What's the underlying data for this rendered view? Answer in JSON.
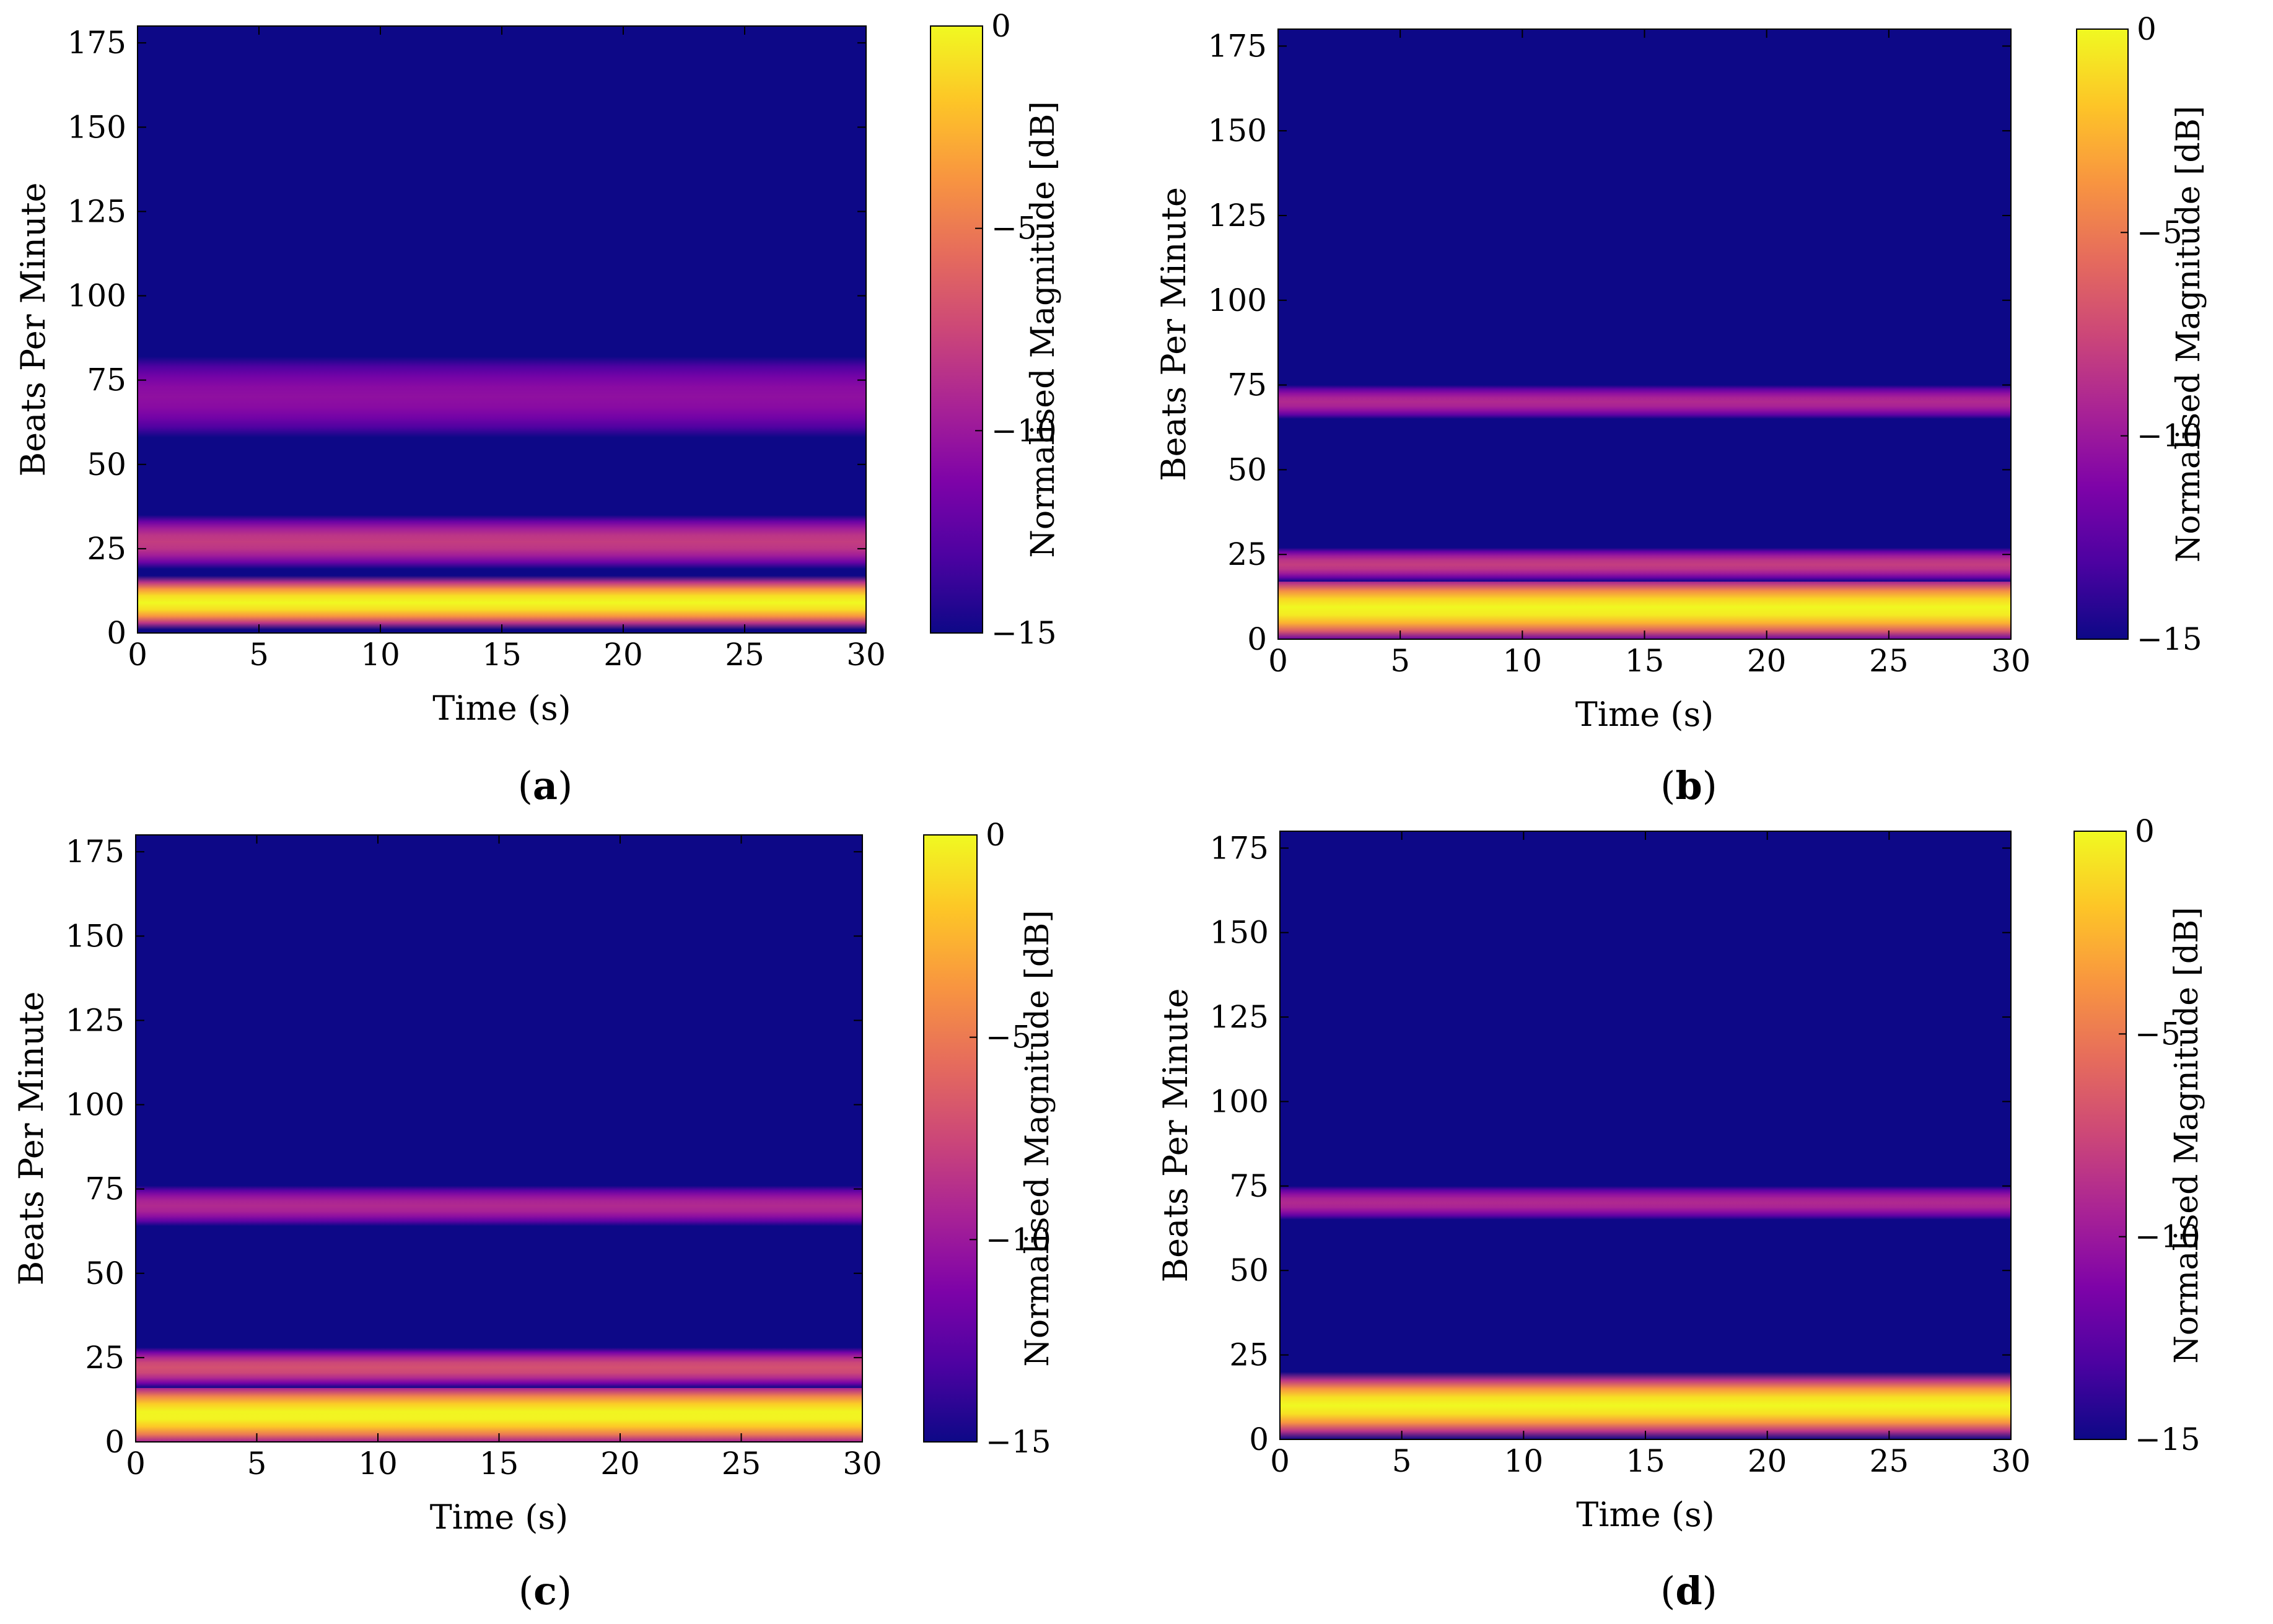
{
  "chart_data": [
    {
      "panel": "a",
      "caption_label": "a",
      "type": "heatmap",
      "xlabel": "Time (s)",
      "ylabel": "Beats Per Minute",
      "xlim": [
        0,
        30
      ],
      "ylim": [
        0,
        180
      ],
      "xticks": [
        0,
        5,
        10,
        15,
        20,
        25,
        30
      ],
      "yticks": [
        0,
        25,
        50,
        75,
        100,
        125,
        150,
        175
      ],
      "colorbar": {
        "label": "Normalised Magnitude [dB]",
        "range": [
          -15,
          0
        ],
        "ticks": [
          0,
          -5,
          -10,
          -15
        ],
        "colormap": "plasma"
      },
      "bands": [
        {
          "bpm_center": 9,
          "half_width": 8,
          "magnitude_db": 0
        },
        {
          "bpm_center": 27,
          "half_width": 8,
          "magnitude_db": -8
        },
        {
          "bpm_center": 70,
          "half_width": 12,
          "magnitude_db": -10.5
        }
      ]
    },
    {
      "panel": "b",
      "caption_label": "b",
      "type": "heatmap",
      "xlabel": "Time (s)",
      "ylabel": "Beats Per Minute",
      "xlim": [
        0,
        30
      ],
      "ylim": [
        0,
        180
      ],
      "xticks": [
        0,
        5,
        10,
        15,
        20,
        25,
        30
      ],
      "yticks": [
        0,
        25,
        50,
        75,
        100,
        125,
        150,
        175
      ],
      "colorbar": {
        "label": "Normalised Magnitude [dB]",
        "range": [
          -15,
          0
        ],
        "ticks": [
          0,
          -5,
          -10,
          -15
        ],
        "colormap": "plasma"
      },
      "bands": [
        {
          "bpm_center": 9,
          "half_width": 10,
          "magnitude_db": 0
        },
        {
          "bpm_center": 22,
          "half_width": 5,
          "magnitude_db": -8
        },
        {
          "bpm_center": 70,
          "half_width": 5,
          "magnitude_db": -9
        }
      ]
    },
    {
      "panel": "c",
      "caption_label": "c",
      "type": "heatmap",
      "xlabel": "Time (s)",
      "ylabel": "Beats Per Minute",
      "xlim": [
        0,
        30
      ],
      "ylim": [
        0,
        180
      ],
      "xticks": [
        0,
        5,
        10,
        15,
        20,
        25,
        30
      ],
      "yticks": [
        0,
        25,
        50,
        75,
        100,
        125,
        150,
        175
      ],
      "colorbar": {
        "label": "Normalised Magnitude [dB]",
        "range": [
          -15,
          0
        ],
        "ticks": [
          0,
          -5,
          -10,
          -15
        ],
        "colormap": "plasma"
      },
      "bands": [
        {
          "bpm_center": 8,
          "half_width": 10,
          "magnitude_db": 0
        },
        {
          "bpm_center": 22,
          "half_width": 6,
          "magnitude_db": -7
        },
        {
          "bpm_center": 70,
          "half_width": 6,
          "magnitude_db": -9
        }
      ]
    },
    {
      "panel": "d",
      "caption_label": "d",
      "type": "heatmap",
      "xlabel": "Time (s)",
      "ylabel": "Beats Per Minute",
      "xlim": [
        0,
        30
      ],
      "ylim": [
        0,
        180
      ],
      "xticks": [
        0,
        5,
        10,
        15,
        20,
        25,
        30
      ],
      "yticks": [
        0,
        25,
        50,
        75,
        100,
        125,
        150,
        175
      ],
      "colorbar": {
        "label": "Normalised Magnitude [dB]",
        "range": [
          -15,
          0
        ],
        "ticks": [
          0,
          -5,
          -10,
          -15
        ],
        "colormap": "plasma"
      },
      "bands": [
        {
          "bpm_center": 10,
          "half_width": 10,
          "magnitude_db": 0
        },
        {
          "bpm_center": 70,
          "half_width": 5,
          "magnitude_db": -9
        }
      ]
    }
  ],
  "colors": {
    "background": "#0d0887",
    "plasma": [
      "#0d0887",
      "#4c02a1",
      "#7e03a8",
      "#a92395",
      "#cc4778",
      "#e66c5c",
      "#f89540",
      "#fdc527",
      "#f0f921"
    ]
  }
}
